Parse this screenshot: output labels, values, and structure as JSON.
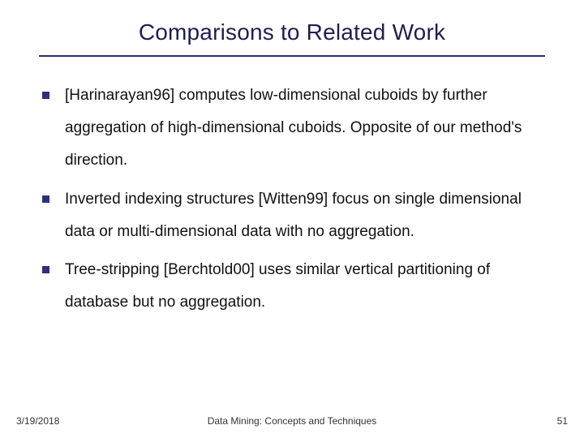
{
  "title": "Comparisons to Related Work",
  "bullets": [
    "[Harinarayan96] computes low-dimensional cuboids by further aggregation of high-dimensional cuboids. Opposite of our method's direction.",
    "Inverted indexing structures [Witten99] focus on single dimensional data or multi-dimensional data with no aggregation.",
    "Tree-stripping [Berchtold00] uses similar vertical partitioning of database but no aggregation."
  ],
  "footer": {
    "date": "3/19/2018",
    "center": "Data Mining: Concepts and Techniques",
    "page": "51"
  },
  "colors": {
    "title_color": "#1f1f4d",
    "rule_color": "#2b2b70",
    "bullet_color": "#2f2f7a",
    "background": "#ffffff"
  },
  "typography": {
    "title_fontsize": 28,
    "body_fontsize": 19,
    "footer_fontsize": 12,
    "line_height": 2.1
  }
}
